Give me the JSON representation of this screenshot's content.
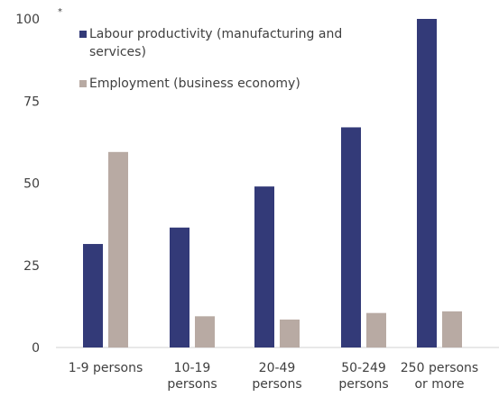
{
  "chart_data": {
    "type": "bar",
    "note": "*",
    "categories": [
      [
        "1-9 persons"
      ],
      [
        "10-19",
        "persons"
      ],
      [
        "20-49",
        "persons"
      ],
      [
        "50-249",
        "persons"
      ],
      [
        "250 persons",
        "or more"
      ]
    ],
    "series": [
      {
        "name_lines": [
          "Labour productivity (manufacturing and",
          "services)"
        ],
        "color": "#333a78",
        "values": [
          31.5,
          36.5,
          49,
          67,
          100
        ]
      },
      {
        "name_lines": [
          "Employment (business economy)"
        ],
        "color": "#b8aaa3",
        "values": [
          59.5,
          9.5,
          8.5,
          10.5,
          11
        ]
      }
    ],
    "ylim": [
      0,
      100
    ],
    "yticks": [
      0,
      25,
      50,
      75,
      100
    ],
    "grid": false,
    "legend_position": "top-left"
  }
}
